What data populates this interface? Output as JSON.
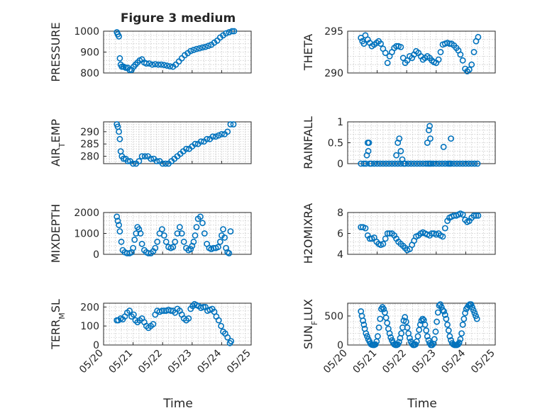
{
  "figure": {
    "title": "Figure 3 medium",
    "marker_color": "#0072bd",
    "xlabel": "Time"
  },
  "chart_data": [
    {
      "type": "scatter",
      "ylabel": "PRESSURE",
      "ylim": [
        800,
        1000
      ],
      "yticks": [
        800,
        900,
        1000
      ],
      "xlim": [
        20,
        25
      ],
      "grid": true,
      "x": [
        20.45,
        20.48,
        20.52,
        20.55,
        20.58,
        20.62,
        20.68,
        20.75,
        20.82,
        20.88,
        20.95,
        21.02,
        21.08,
        21.15,
        21.22,
        21.3,
        21.38,
        21.45,
        21.55,
        21.65,
        21.75,
        21.85,
        21.95,
        22.05,
        22.15,
        22.25,
        22.35,
        22.45,
        22.55,
        22.65,
        22.75,
        22.85,
        22.95,
        23.05,
        23.15,
        23.25,
        23.35,
        23.45,
        23.55,
        23.65,
        23.75,
        23.85,
        23.95,
        24.05,
        24.15,
        24.25,
        24.35,
        24.42
      ],
      "y": [
        995,
        985,
        975,
        870,
        840,
        830,
        830,
        825,
        825,
        815,
        815,
        830,
        840,
        850,
        860,
        865,
        850,
        845,
        845,
        840,
        842,
        840,
        840,
        838,
        835,
        832,
        830,
        840,
        855,
        870,
        885,
        895,
        905,
        910,
        915,
        918,
        922,
        925,
        930,
        935,
        945,
        955,
        970,
        980,
        990,
        995,
        1000,
        1000
      ]
    },
    {
      "type": "scatter",
      "ylabel": "THETA",
      "ylim": [
        290,
        295
      ],
      "yticks": [
        290,
        295
      ],
      "xlim": [
        20,
        25
      ],
      "grid": true,
      "x": [
        20.45,
        20.5,
        20.55,
        20.6,
        20.68,
        20.75,
        20.82,
        20.9,
        20.98,
        21.05,
        21.12,
        21.2,
        21.28,
        21.35,
        21.42,
        21.5,
        21.58,
        21.65,
        21.72,
        21.8,
        21.88,
        21.95,
        22.02,
        22.1,
        22.18,
        22.25,
        22.32,
        22.4,
        22.48,
        22.55,
        22.62,
        22.7,
        22.78,
        22.85,
        22.92,
        23.0,
        23.08,
        23.15,
        23.22,
        23.3,
        23.38,
        23.45,
        23.52,
        23.6,
        23.68,
        23.75,
        23.82,
        23.9,
        23.98,
        24.05,
        24.12,
        24.2,
        24.28,
        24.35,
        24.42
      ],
      "y": [
        294.2,
        293.8,
        293.5,
        294.5,
        294.0,
        293.6,
        293.2,
        293.4,
        293.6,
        293.8,
        293.5,
        292.9,
        292.4,
        291.2,
        292.0,
        292.5,
        293.0,
        293.2,
        293.2,
        293.1,
        291.8,
        291.2,
        291.5,
        292.0,
        291.8,
        292.2,
        292.6,
        292.4,
        292.0,
        291.6,
        291.8,
        292.0,
        291.8,
        291.5,
        291.3,
        291.2,
        291.6,
        292.5,
        293.4,
        293.5,
        293.6,
        293.5,
        293.5,
        293.3,
        293.0,
        292.7,
        292.2,
        291.5,
        290.5,
        290.2,
        290.4,
        291.0,
        292.5,
        293.8,
        294.3
      ]
    },
    {
      "type": "scatter",
      "ylabel": "AIR_TEMP",
      "ylim": [
        277,
        294
      ],
      "yticks": [
        280,
        285,
        290
      ],
      "xlim": [
        20,
        25
      ],
      "grid": true,
      "x": [
        20.45,
        20.48,
        20.52,
        20.55,
        20.58,
        20.62,
        20.68,
        20.75,
        20.82,
        20.9,
        21.0,
        21.1,
        21.2,
        21.3,
        21.4,
        21.5,
        21.6,
        21.7,
        21.8,
        21.9,
        22.0,
        22.1,
        22.2,
        22.3,
        22.4,
        22.5,
        22.6,
        22.7,
        22.8,
        22.9,
        23.0,
        23.1,
        23.2,
        23.3,
        23.4,
        23.5,
        23.6,
        23.7,
        23.8,
        23.9,
        24.0,
        24.1,
        24.2,
        24.3,
        24.4
      ],
      "y": [
        293,
        292,
        290,
        287,
        282,
        280,
        279,
        279,
        278,
        278,
        277,
        277,
        278,
        280,
        280,
        280,
        279,
        279,
        278,
        278,
        277,
        277,
        277,
        278,
        279,
        280,
        281,
        282,
        283,
        283,
        284,
        285,
        285,
        286,
        286,
        287,
        287,
        288,
        288,
        288.5,
        289,
        289,
        290,
        293,
        293
      ]
    },
    {
      "type": "scatter",
      "ylabel": "RAINFALL",
      "ylim": [
        0,
        1
      ],
      "yticks": [
        0,
        0.5,
        1
      ],
      "xlim": [
        20,
        25
      ],
      "grid": true,
      "x": [
        20.45,
        20.55,
        20.62,
        20.68,
        20.72,
        20.75,
        20.8,
        20.9,
        21.0,
        21.1,
        21.2,
        21.3,
        21.4,
        21.5,
        21.6,
        21.7,
        21.8,
        21.9,
        21.95,
        22.05,
        22.15,
        22.25,
        22.35,
        22.45,
        22.55,
        22.65,
        22.72,
        22.78,
        22.82,
        22.9,
        23.0,
        23.1,
        23.2,
        23.3,
        23.4,
        23.45,
        23.5,
        23.6,
        23.7,
        23.8,
        23.9,
        24.0,
        24.1,
        24.2,
        24.3,
        24.4,
        22.7,
        22.75,
        22.78,
        22.8,
        21.65,
        21.7,
        21.75,
        21.8,
        23.25,
        23.5,
        21.85,
        20.7,
        20.65
      ],
      "y": [
        0,
        0,
        0,
        0.5,
        0.5,
        0,
        0,
        0,
        0,
        0,
        0,
        0,
        0,
        0,
        0,
        0,
        0,
        0,
        0,
        0,
        0,
        0,
        0,
        0,
        0,
        0,
        0,
        0,
        0,
        0,
        0,
        0,
        0,
        0,
        0,
        0,
        0,
        0,
        0,
        0,
        0,
        0,
        0,
        0,
        0,
        0,
        0.5,
        0.8,
        0.9,
        0.6,
        0.2,
        0.5,
        0.6,
        0.3,
        0.4,
        0.6,
        0.1,
        0.3,
        0.2
      ]
    },
    {
      "type": "scatter",
      "ylabel": "MIXDEPTH",
      "ylim": [
        0,
        2000
      ],
      "yticks": [
        0,
        1000,
        2000
      ],
      "xlim": [
        20,
        25
      ],
      "grid": true,
      "x": [
        20.45,
        20.48,
        20.52,
        20.55,
        20.6,
        20.65,
        20.72,
        20.8,
        20.88,
        20.95,
        21.0,
        21.05,
        21.1,
        21.15,
        21.2,
        21.25,
        21.3,
        21.38,
        21.45,
        21.52,
        21.6,
        21.68,
        21.75,
        21.82,
        21.9,
        21.98,
        22.05,
        22.12,
        22.2,
        22.28,
        22.35,
        22.42,
        22.5,
        22.58,
        22.65,
        22.72,
        22.8,
        22.88,
        22.95,
        23.0,
        23.05,
        23.1,
        23.15,
        23.2,
        23.28,
        23.35,
        23.42,
        23.5,
        23.58,
        23.65,
        23.72,
        23.8,
        23.88,
        23.95,
        24.0,
        24.05,
        24.1,
        24.15,
        24.2,
        24.25,
        24.3
      ],
      "y": [
        1800,
        1600,
        1400,
        1100,
        600,
        200,
        100,
        50,
        50,
        100,
        300,
        700,
        1000,
        1300,
        1200,
        1000,
        500,
        200,
        100,
        50,
        50,
        150,
        300,
        600,
        1000,
        1200,
        900,
        600,
        350,
        300,
        350,
        600,
        1000,
        1300,
        1000,
        600,
        300,
        200,
        250,
        400,
        600,
        900,
        1300,
        1700,
        1800,
        1500,
        1000,
        500,
        300,
        250,
        300,
        300,
        350,
        600,
        900,
        1200,
        800,
        300,
        100,
        50,
        1100
      ]
    },
    {
      "type": "scatter",
      "ylabel": "H2OMIXRA",
      "ylim": [
        4,
        8
      ],
      "yticks": [
        4,
        6,
        8
      ],
      "xlim": [
        20,
        25
      ],
      "grid": true,
      "x": [
        20.45,
        20.52,
        20.6,
        20.68,
        20.75,
        20.82,
        20.9,
        20.98,
        21.05,
        21.12,
        21.2,
        21.28,
        21.35,
        21.42,
        21.5,
        21.58,
        21.65,
        21.72,
        21.8,
        21.88,
        21.95,
        22.02,
        22.1,
        22.18,
        22.25,
        22.32,
        22.4,
        22.48,
        22.55,
        22.62,
        22.7,
        22.78,
        22.85,
        22.92,
        23.0,
        23.08,
        23.15,
        23.22,
        23.3,
        23.38,
        23.45,
        23.52,
        23.6,
        23.68,
        23.75,
        23.82,
        23.9,
        23.98,
        24.05,
        24.12,
        24.2,
        24.28,
        24.35,
        24.42
      ],
      "y": [
        6.6,
        6.6,
        6.5,
        5.8,
        5.5,
        5.5,
        5.6,
        5.2,
        5.0,
        4.9,
        5.0,
        5.5,
        6.0,
        6.0,
        6.0,
        5.8,
        5.5,
        5.2,
        5.0,
        4.8,
        4.6,
        4.4,
        4.5,
        4.9,
        5.3,
        5.7,
        5.8,
        6.0,
        6.1,
        6.0,
        5.9,
        5.8,
        6.0,
        6.0,
        5.9,
        6.0,
        5.8,
        5.7,
        6.5,
        7.2,
        7.5,
        7.6,
        7.7,
        7.7,
        7.8,
        7.9,
        7.8,
        7.3,
        7.1,
        7.2,
        7.5,
        7.7,
        7.7,
        7.7
      ]
    },
    {
      "type": "scatter",
      "ylabel": "TERR_MSL",
      "ylim": [
        0,
        220
      ],
      "yticks": [
        0,
        100,
        200
      ],
      "xlim": [
        20,
        25
      ],
      "grid": true,
      "x": [
        20.45,
        20.5,
        20.58,
        20.65,
        20.72,
        20.8,
        20.88,
        20.95,
        21.02,
        21.08,
        21.15,
        21.22,
        21.3,
        21.38,
        21.45,
        21.52,
        21.6,
        21.68,
        21.75,
        21.82,
        21.9,
        21.98,
        22.05,
        22.12,
        22.2,
        22.28,
        22.35,
        22.42,
        22.5,
        22.58,
        22.65,
        22.72,
        22.8,
        22.88,
        22.95,
        23.02,
        23.08,
        23.15,
        23.22,
        23.3,
        23.38,
        23.45,
        23.52,
        23.6,
        23.68,
        23.75,
        23.82,
        23.9,
        23.98,
        24.05,
        24.12,
        24.2,
        24.28,
        24.32
      ],
      "y": [
        130,
        130,
        140,
        135,
        150,
        170,
        180,
        150,
        160,
        130,
        120,
        130,
        140,
        120,
        100,
        90,
        100,
        110,
        160,
        180,
        175,
        180,
        180,
        180,
        185,
        180,
        180,
        170,
        190,
        180,
        160,
        140,
        130,
        140,
        190,
        205,
        215,
        210,
        205,
        195,
        200,
        200,
        180,
        185,
        190,
        175,
        150,
        130,
        100,
        70,
        60,
        40,
        10,
        20
      ]
    },
    {
      "type": "scatter",
      "ylabel": "SUN_FLUX",
      "ylim": [
        0,
        720
      ],
      "yticks": [
        0,
        500
      ],
      "xlim": [
        20,
        25
      ],
      "grid": true,
      "x": [
        20.45,
        20.48,
        20.52,
        20.55,
        20.58,
        20.62,
        20.66,
        20.7,
        20.74,
        20.78,
        20.82,
        20.86,
        20.9,
        20.94,
        20.98,
        21.02,
        21.06,
        21.1,
        21.14,
        21.18,
        21.22,
        21.26,
        21.3,
        21.34,
        21.38,
        21.42,
        21.46,
        21.5,
        21.54,
        21.58,
        21.62,
        21.66,
        21.7,
        21.74,
        21.78,
        21.82,
        21.86,
        21.9,
        21.94,
        21.98,
        22.02,
        22.06,
        22.1,
        22.14,
        22.18,
        22.22,
        22.26,
        22.3,
        22.34,
        22.38,
        22.42,
        22.46,
        22.5,
        22.54,
        22.58,
        22.62,
        22.66,
        22.7,
        22.74,
        22.78,
        22.82,
        22.86,
        22.9,
        22.94,
        22.98,
        23.02,
        23.06,
        23.1,
        23.14,
        23.18,
        23.22,
        23.26,
        23.3,
        23.34,
        23.38,
        23.42,
        23.46,
        23.5,
        23.54,
        23.58,
        23.62,
        23.66,
        23.7,
        23.74,
        23.78,
        23.82,
        23.86,
        23.9,
        23.94,
        23.98,
        24.02,
        24.06,
        24.1,
        24.14,
        24.18,
        24.22,
        24.26,
        24.3,
        24.34,
        24.38
      ],
      "y": [
        580,
        500,
        420,
        350,
        280,
        200,
        150,
        100,
        60,
        20,
        5,
        0,
        0,
        10,
        60,
        150,
        300,
        450,
        620,
        650,
        620,
        560,
        470,
        380,
        280,
        200,
        130,
        80,
        40,
        10,
        0,
        0,
        10,
        50,
        120,
        200,
        300,
        420,
        480,
        400,
        300,
        200,
        120,
        60,
        20,
        0,
        0,
        10,
        60,
        150,
        260,
        350,
        420,
        450,
        430,
        350,
        250,
        150,
        80,
        30,
        0,
        0,
        20,
        100,
        230,
        400,
        560,
        680,
        700,
        650,
        600,
        580,
        520,
        450,
        350,
        250,
        150,
        80,
        30,
        10,
        0,
        0,
        0,
        10,
        40,
        100,
        200,
        350,
        450,
        550,
        620,
        650,
        680,
        700,
        700,
        650,
        600,
        550,
        500,
        450
      ]
    }
  ],
  "xaxis": {
    "tick_values": [
      20,
      21,
      22,
      23,
      24,
      25
    ],
    "tick_labels": [
      "05/20",
      "05/21",
      "05/22",
      "05/23",
      "05/24",
      "05/25"
    ]
  }
}
